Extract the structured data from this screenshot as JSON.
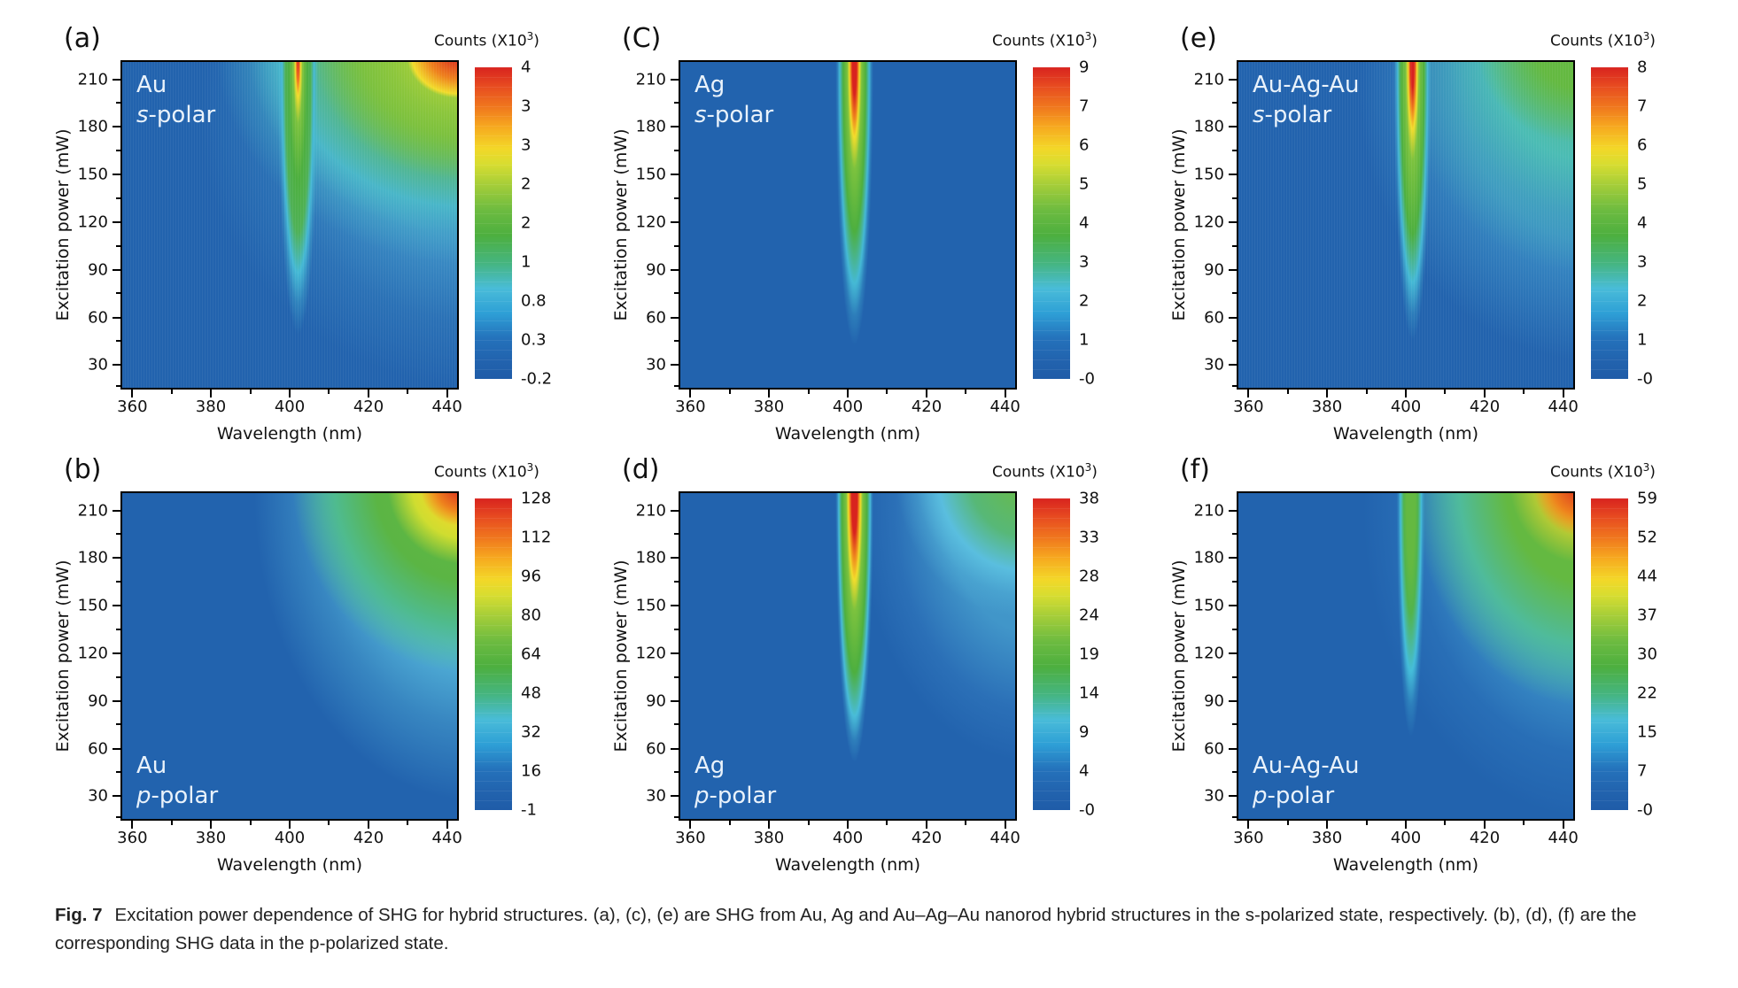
{
  "figure": {
    "caption_label": "Fig. 7",
    "caption_text": "Excitation power dependence of SHG for hybrid structures. (a), (c), (e) are SHG from Au, Ag and Au–Ag–Au nanorod hybrid structures in the s-polarized state, respectively. (b), (d), (f) are the corresponding SHG data in the p-polarized state."
  },
  "axes": {
    "x_label": "Wavelength (nm)",
    "y_label": "Excitation power (mW)",
    "x_ticks": [
      "360",
      "380",
      "400",
      "420",
      "440"
    ],
    "y_ticks": [
      "210",
      "180",
      "150",
      "120",
      "90",
      "60",
      "30"
    ]
  },
  "colorbar_title": {
    "main": "Counts (X10",
    "sup": "3",
    "end": ")"
  },
  "panels": [
    {
      "id": "a",
      "label": "(a)",
      "material": "Au",
      "polar_prefix": "s",
      "polar_suffix": "-polar",
      "colorbar_ticks": [
        "4",
        "3",
        "3",
        "2",
        "2",
        "1",
        "0.8",
        "0.3",
        "-0.2"
      ]
    },
    {
      "id": "c",
      "label": "(C)",
      "material": "Ag",
      "polar_prefix": "s",
      "polar_suffix": "-polar",
      "colorbar_ticks": [
        "9",
        "7",
        "6",
        "5",
        "4",
        "3",
        "2",
        "1",
        "-0"
      ]
    },
    {
      "id": "e",
      "label": "(e)",
      "material": "Au-Ag-Au",
      "polar_prefix": "s",
      "polar_suffix": "-polar",
      "colorbar_ticks": [
        "8",
        "7",
        "6",
        "5",
        "4",
        "3",
        "2",
        "1",
        "-0"
      ]
    },
    {
      "id": "b",
      "label": "(b)",
      "material": "Au",
      "polar_prefix": "p",
      "polar_suffix": "-polar",
      "colorbar_ticks": [
        "128",
        "112",
        "96",
        "80",
        "64",
        "48",
        "32",
        "16",
        "-1"
      ]
    },
    {
      "id": "d",
      "label": "(d)",
      "material": "Ag",
      "polar_prefix": "p",
      "polar_suffix": "-polar",
      "colorbar_ticks": [
        "38",
        "33",
        "28",
        "24",
        "19",
        "14",
        "9",
        "4",
        "-0"
      ]
    },
    {
      "id": "f",
      "label": "(f)",
      "material": "Au-Ag-Au",
      "polar_prefix": "p",
      "polar_suffix": "-polar",
      "colorbar_ticks": [
        "59",
        "52",
        "44",
        "37",
        "30",
        "22",
        "15",
        "7",
        "-0"
      ]
    }
  ],
  "chart_data": [
    {
      "panel": "a",
      "type": "heatmap",
      "title": "Au s-polar",
      "xlabel": "Wavelength (nm)",
      "ylabel": "Excitation power (mW)",
      "zlabel": "Counts (X10^3)",
      "x_range": [
        357,
        443
      ],
      "y_range": [
        15,
        220
      ],
      "z_range": [
        -0.2,
        4
      ],
      "z_ticks": [
        4,
        3,
        3,
        2,
        2,
        1,
        0.8,
        0.3,
        -0.2
      ],
      "features": [
        "narrow SHG peak at ~400 nm appearing above ~70 mW, intensity grows with power up to ~4x10^3 counts at top",
        "broadband emission for wavelengths >410 nm above ~140 mW, maximum (red) at top-right corner ~440 nm",
        "vertical streak noise over blue background"
      ]
    },
    {
      "panel": "c",
      "type": "heatmap",
      "title": "Ag s-polar",
      "xlabel": "Wavelength (nm)",
      "ylabel": "Excitation power (mW)",
      "zlabel": "Counts (X10^3)",
      "x_range": [
        357,
        443
      ],
      "y_range": [
        15,
        220
      ],
      "z_range": [
        0,
        9
      ],
      "z_ticks": [
        9,
        7,
        6,
        5,
        4,
        3,
        2,
        1,
        0
      ],
      "features": [
        "single narrow SHG peak at ~400 nm from ~55 mW upward, red core above ~185 mW reaching 9x10^3 counts",
        "uniform blue background elsewhere"
      ]
    },
    {
      "panel": "e",
      "type": "heatmap",
      "title": "Au-Ag-Au s-polar",
      "xlabel": "Wavelength (nm)",
      "ylabel": "Excitation power (mW)",
      "zlabel": "Counts (X10^3)",
      "x_range": [
        357,
        443
      ],
      "y_range": [
        15,
        220
      ],
      "z_range": [
        0,
        8
      ],
      "z_ticks": [
        8,
        7,
        6,
        5,
        4,
        3,
        2,
        1,
        0
      ],
      "features": [
        "narrow SHG peak at ~400 nm with red top reaching 8x10^3 counts",
        "broad green/teal luminescence wash on right half above ~90 mW, green patch at top-right corner"
      ]
    },
    {
      "panel": "b",
      "type": "heatmap",
      "title": "Au p-polar",
      "xlabel": "Wavelength (nm)",
      "ylabel": "Excitation power (mW)",
      "zlabel": "Counts (X10^3)",
      "x_range": [
        357,
        443
      ],
      "y_range": [
        15,
        220
      ],
      "z_range": [
        -1,
        128
      ],
      "z_ticks": [
        128,
        112,
        96,
        80,
        64,
        48,
        32,
        16,
        -1
      ],
      "features": [
        "smooth broadband emission increasing toward long wavelength and high power",
        "red maximum ~128x10^3 counts at top-right corner (~440 nm, ~215 mW)",
        "cyan-to-green diagonal transition from plot center to right edge; weak notch near 400 nm"
      ]
    },
    {
      "panel": "d",
      "type": "heatmap",
      "title": "Ag p-polar",
      "xlabel": "Wavelength (nm)",
      "ylabel": "Excitation power (mW)",
      "zlabel": "Counts (X10^3)",
      "x_range": [
        357,
        443
      ],
      "y_range": [
        15,
        220
      ],
      "z_range": [
        0,
        38
      ],
      "z_ticks": [
        38,
        33,
        28,
        24,
        19,
        14,
        9,
        4,
        0
      ],
      "features": [
        "strong narrow SHG peak at ~400 nm from ~30 mW, red core above ~160 mW reaching 38x10^3 counts",
        "moderate green/cyan broadband emission at top-right"
      ]
    },
    {
      "panel": "f",
      "type": "heatmap",
      "title": "Au-Ag-Au p-polar",
      "xlabel": "Wavelength (nm)",
      "ylabel": "Excitation power (mW)",
      "zlabel": "Counts (X10^3)",
      "x_range": [
        357,
        443
      ],
      "y_range": [
        15,
        220
      ],
      "z_range": [
        0,
        59
      ],
      "z_ticks": [
        59,
        52,
        44,
        37,
        30,
        22,
        15,
        7,
        0
      ],
      "features": [
        "green SHG ridge at ~400 nm above ~150 mW with cyan tail down to ~70 mW",
        "broad green emission on right half, red maximum 59x10^3 counts at top-right corner"
      ]
    }
  ],
  "colors": {
    "background": "#ffffff",
    "plot_base_blue": "#2263ae",
    "colormap_hex": [
      "#2263ae",
      "#49bcd8",
      "#4daf3f",
      "#f2dc2c",
      "#ee801d",
      "#d8231f"
    ],
    "frame": "#000000",
    "text": "#1a1a1a",
    "annotation_text": "#e9f2fb"
  }
}
